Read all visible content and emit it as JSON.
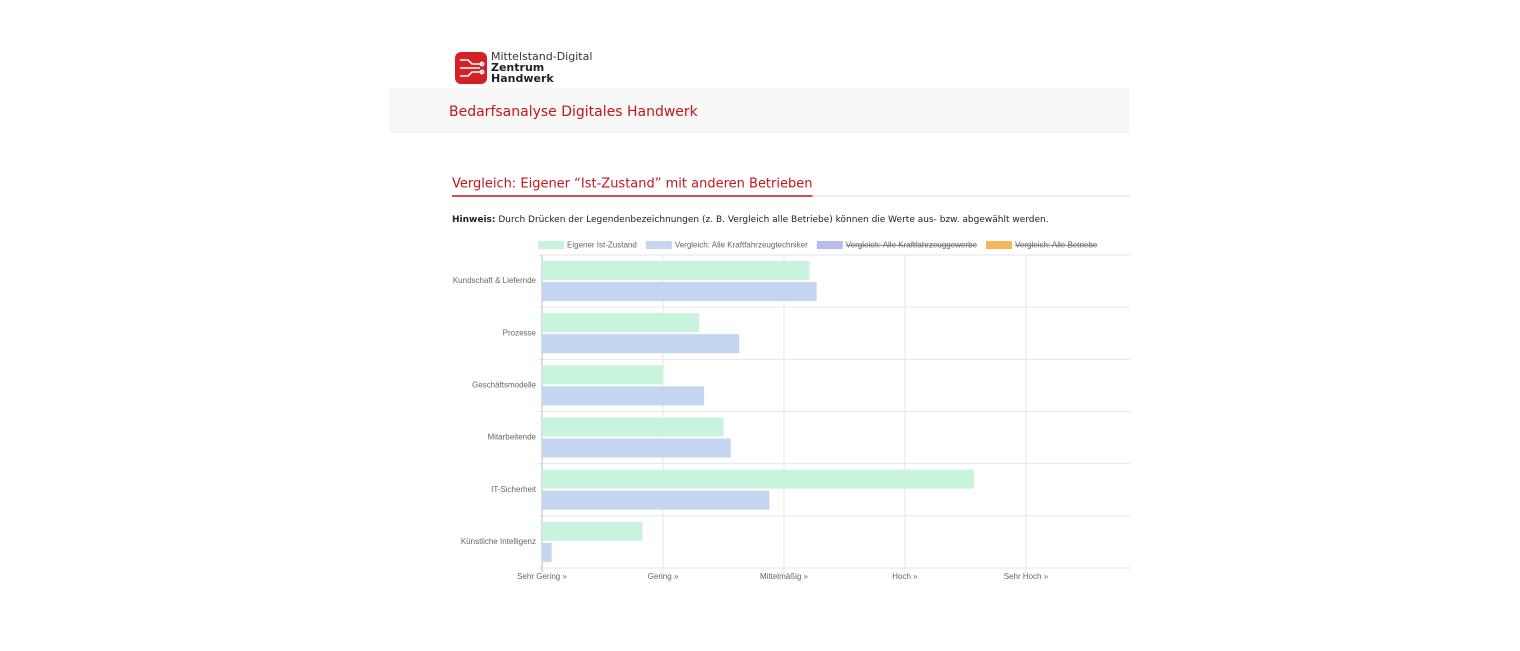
{
  "logo": {
    "lines": [
      "Mittelstand-Digital",
      "Zentrum",
      "Handwerk"
    ]
  },
  "header": {
    "title": "Bedarfsanalyse Digitales Handwerk"
  },
  "section": {
    "heading": "Vergleich: Eigener “Ist-Zustand” mit anderen Betrieben",
    "hint": {
      "label": "Hinweis:",
      "text": "Durch Drücken der Legendenbezeichnungen (z. B. Vergleich alle Betriebe) können die Werte aus- bzw. abgewählt werden."
    }
  },
  "chart_data": {
    "type": "barh",
    "categories": [
      "Kundschaft & Liefernde",
      "Prozesse",
      "Geschäftsmodelle",
      "Mitarbeitende",
      "IT-Sicherheit",
      "Künstliche Intelligenz"
    ],
    "series": [
      {
        "name": "Eigener Ist-Zustand",
        "color": "#c8f3dd",
        "values": [
          2.21,
          1.3,
          1.0,
          1.5,
          3.57,
          0.83
        ]
      },
      {
        "name": "Vergleich: Alle Kraftfahrzeugtechniker",
        "color": "#c3d5f0",
        "values": [
          2.27,
          1.63,
          1.34,
          1.56,
          1.88,
          0.08
        ]
      }
    ],
    "hidden_series": [
      {
        "name": "Vergleich: Alle Kraftfahrzeuggewerbe",
        "color": "#b9bdee"
      },
      {
        "name": "Vergleich: Alle Betriebe",
        "color": "#f5b45e"
      }
    ],
    "xlim": [
      0,
      4.86
    ],
    "xticks": [
      {
        "value": 0,
        "label": "Sehr Gering »"
      },
      {
        "value": 1,
        "label": "Gering »"
      },
      {
        "value": 2,
        "label": "Mittelmäßig »"
      },
      {
        "value": 3,
        "label": "Hoch »"
      },
      {
        "value": 4,
        "label": "Sehr Hoch »"
      }
    ],
    "grid": true
  }
}
